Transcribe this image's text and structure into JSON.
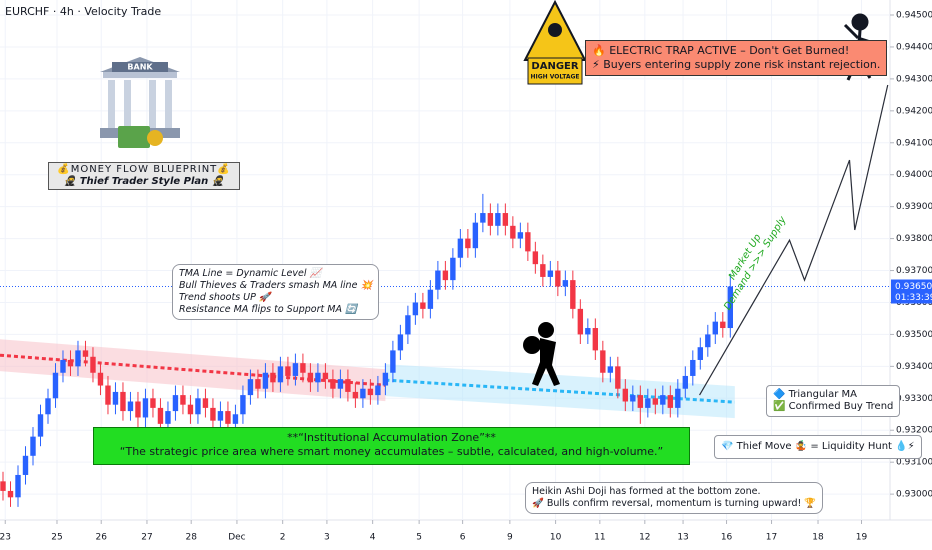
{
  "chart_data": {
    "type": "candlestick",
    "title": "EURCHF · 4h · Velocity Trade",
    "up_color": "#2962ff",
    "down_color": "#f23645",
    "grid": true,
    "xlim": [
      -0.4,
      118.3
    ],
    "ylim": [
      0.92919,
      0.94547
    ],
    "xticks": [
      {
        "value": 0.3,
        "label": "23"
      },
      {
        "value": 7.2,
        "label": "25"
      },
      {
        "value": 13.1,
        "label": "26"
      },
      {
        "value": 19.2,
        "label": "27"
      },
      {
        "value": 25.1,
        "label": "28"
      },
      {
        "value": 31.2,
        "label": "Dec"
      },
      {
        "value": 37.3,
        "label": "2"
      },
      {
        "value": 43.2,
        "label": "3"
      },
      {
        "value": 49.3,
        "label": "4"
      },
      {
        "value": 55.5,
        "label": "5"
      },
      {
        "value": 61.3,
        "label": "6"
      },
      {
        "value": 67.6,
        "label": "9"
      },
      {
        "value": 73.7,
        "label": "10"
      },
      {
        "value": 79.6,
        "label": "11"
      },
      {
        "value": 85.6,
        "label": "12"
      },
      {
        "value": 90.7,
        "label": "13"
      },
      {
        "value": 96.5,
        "label": "16"
      },
      {
        "value": 102.5,
        "label": "17"
      },
      {
        "value": 108.7,
        "label": "18"
      },
      {
        "value": 114.5,
        "label": "19"
      }
    ],
    "yticks": [
      {
        "value": 0.93,
        "label": "0.93000"
      },
      {
        "value": 0.931,
        "label": "0.93100"
      },
      {
        "value": 0.932,
        "label": "0.93200"
      },
      {
        "value": 0.933,
        "label": "0.93300"
      },
      {
        "value": 0.934,
        "label": "0.93400"
      },
      {
        "value": 0.935,
        "label": "0.93500"
      },
      {
        "value": 0.936,
        "label": "0.93600"
      },
      {
        "value": 0.937,
        "label": "0.93700"
      },
      {
        "value": 0.938,
        "label": "0.93800"
      },
      {
        "value": 0.939,
        "label": "0.93900"
      },
      {
        "value": 0.94,
        "label": "0.94000"
      },
      {
        "value": 0.941,
        "label": "0.94100"
      },
      {
        "value": 0.942,
        "label": "0.94200"
      },
      {
        "value": 0.943,
        "label": "0.94300"
      },
      {
        "value": 0.944,
        "label": "0.94400"
      },
      {
        "value": 0.945,
        "label": "0.94500"
      }
    ],
    "x": [
      0,
      1,
      2,
      3,
      4,
      5,
      6,
      7,
      8,
      9,
      10,
      11,
      12,
      13,
      14,
      15,
      16,
      17,
      18,
      19,
      20,
      21,
      22,
      23,
      24,
      25,
      26,
      27,
      28,
      29,
      30,
      31,
      32,
      33,
      34,
      35,
      36,
      37,
      38,
      39,
      40,
      41,
      42,
      43,
      44,
      45,
      46,
      47,
      48,
      49,
      50,
      51,
      52,
      53,
      54,
      55,
      56,
      57,
      58,
      59,
      60,
      61,
      62,
      63,
      64,
      65,
      66,
      67,
      68,
      69,
      70,
      71,
      72,
      73,
      74,
      75,
      76,
      77,
      78,
      79,
      80,
      81,
      82,
      83,
      84,
      85,
      86,
      87,
      88,
      89,
      90,
      91,
      92,
      93,
      94,
      95,
      96,
      97
    ],
    "open": [
      0.9304,
      0.9301,
      0.9299,
      0.9306,
      0.9312,
      0.9318,
      0.9325,
      0.933,
      0.9338,
      0.9342,
      0.934,
      0.9345,
      0.9343,
      0.9338,
      0.9334,
      0.9328,
      0.9332,
      0.9326,
      0.9329,
      0.9324,
      0.933,
      0.9327,
      0.9322,
      0.9326,
      0.9331,
      0.9328,
      0.9325,
      0.933,
      0.9327,
      0.9323,
      0.9326,
      0.9322,
      0.9325,
      0.9331,
      0.9336,
      0.9333,
      0.9338,
      0.9335,
      0.934,
      0.9337,
      0.9341,
      0.9338,
      0.9335,
      0.9338,
      0.9336,
      0.9333,
      0.9336,
      0.9332,
      0.933,
      0.9333,
      0.9331,
      0.9334,
      0.9338,
      0.9345,
      0.935,
      0.9356,
      0.936,
      0.9358,
      0.9364,
      0.937,
      0.9367,
      0.9374,
      0.938,
      0.9377,
      0.9385,
      0.9388,
      0.9384,
      0.9388,
      0.9384,
      0.938,
      0.9382,
      0.9376,
      0.9372,
      0.9368,
      0.937,
      0.9365,
      0.9367,
      0.9358,
      0.935,
      0.9352,
      0.9345,
      0.9338,
      0.934,
      0.9333,
      0.9329,
      0.9331,
      0.9327,
      0.933,
      0.9328,
      0.9331,
      0.9327,
      0.9333,
      0.9337,
      0.9342,
      0.9346,
      0.935,
      0.9354,
      0.9352
    ],
    "high": [
      0.9307,
      0.9304,
      0.9309,
      0.9315,
      0.9321,
      0.9328,
      0.9333,
      0.9341,
      0.9345,
      0.9345,
      0.9348,
      0.9348,
      0.9346,
      0.9341,
      0.9337,
      0.9335,
      0.9335,
      0.9332,
      0.9332,
      0.9333,
      0.9333,
      0.933,
      0.9329,
      0.9334,
      0.9334,
      0.9331,
      0.9333,
      0.9333,
      0.933,
      0.9329,
      0.9329,
      0.9328,
      0.9334,
      0.9339,
      0.9339,
      0.9341,
      0.9341,
      0.9343,
      0.9343,
      0.9344,
      0.9344,
      0.9341,
      0.9341,
      0.9341,
      0.9339,
      0.9339,
      0.9339,
      0.9335,
      0.9336,
      0.9336,
      0.9337,
      0.9341,
      0.9348,
      0.9353,
      0.9359,
      0.9363,
      0.9363,
      0.9367,
      0.9373,
      0.9373,
      0.9377,
      0.9383,
      0.9383,
      0.9388,
      0.9394,
      0.9391,
      0.9391,
      0.9391,
      0.9387,
      0.9385,
      0.9385,
      0.9379,
      0.9375,
      0.9373,
      0.9373,
      0.937,
      0.937,
      0.9361,
      0.9355,
      0.9355,
      0.9348,
      0.9343,
      0.9343,
      0.9336,
      0.9334,
      0.9334,
      0.9333,
      0.9333,
      0.9334,
      0.9334,
      0.9336,
      0.934,
      0.9345,
      0.9349,
      0.9353,
      0.9357,
      0.9357,
      0.9369
    ],
    "low": [
      0.9298,
      0.9296,
      0.9296,
      0.9303,
      0.9309,
      0.9315,
      0.9322,
      0.9327,
      0.9335,
      0.9337,
      0.9337,
      0.934,
      0.9335,
      0.9331,
      0.9325,
      0.9325,
      0.9323,
      0.9323,
      0.9321,
      0.9321,
      0.9324,
      0.9319,
      0.9319,
      0.9323,
      0.9325,
      0.9322,
      0.9322,
      0.9324,
      0.932,
      0.932,
      0.9319,
      0.9319,
      0.9322,
      0.9328,
      0.933,
      0.933,
      0.9332,
      0.9332,
      0.9334,
      0.9334,
      0.9335,
      0.9332,
      0.9332,
      0.9333,
      0.933,
      0.933,
      0.9329,
      0.9327,
      0.9327,
      0.9328,
      0.9328,
      0.9331,
      0.9335,
      0.9342,
      0.9347,
      0.9353,
      0.9355,
      0.9355,
      0.9361,
      0.9364,
      0.9364,
      0.9371,
      0.9374,
      0.9374,
      0.9382,
      0.9381,
      0.9381,
      0.9381,
      0.9377,
      0.9377,
      0.9373,
      0.9369,
      0.9365,
      0.9365,
      0.9362,
      0.9362,
      0.9355,
      0.9347,
      0.9347,
      0.9342,
      0.9335,
      0.9335,
      0.933,
      0.9326,
      0.9326,
      0.9322,
      0.9324,
      0.9325,
      0.9325,
      0.9324,
      0.9324,
      0.933,
      0.9334,
      0.9339,
      0.9343,
      0.9347,
      0.9349,
      0.9349
    ],
    "close": [
      0.9301,
      0.9299,
      0.9306,
      0.9312,
      0.9318,
      0.9325,
      0.933,
      0.9338,
      0.9342,
      0.934,
      0.9345,
      0.9343,
      0.9338,
      0.9334,
      0.9328,
      0.9332,
      0.9326,
      0.9329,
      0.9324,
      0.933,
      0.9327,
      0.9322,
      0.9326,
      0.9331,
      0.9328,
      0.9325,
      0.933,
      0.9327,
      0.9323,
      0.9326,
      0.9322,
      0.9325,
      0.9331,
      0.9336,
      0.9333,
      0.9338,
      0.9335,
      0.934,
      0.9337,
      0.9341,
      0.9338,
      0.9335,
      0.9338,
      0.9336,
      0.9333,
      0.9336,
      0.9332,
      0.933,
      0.9333,
      0.9331,
      0.9334,
      0.9338,
      0.9345,
      0.935,
      0.9356,
      0.936,
      0.9358,
      0.9364,
      0.937,
      0.9367,
      0.9374,
      0.938,
      0.9377,
      0.9385,
      0.9388,
      0.9384,
      0.9388,
      0.9384,
      0.938,
      0.9382,
      0.9376,
      0.9372,
      0.9368,
      0.937,
      0.9365,
      0.9367,
      0.9358,
      0.935,
      0.9352,
      0.9345,
      0.9338,
      0.934,
      0.9333,
      0.9329,
      0.9331,
      0.9327,
      0.933,
      0.9328,
      0.9331,
      0.9327,
      0.9333,
      0.9337,
      0.9342,
      0.9346,
      0.935,
      0.9354,
      0.9352,
      0.9365
    ],
    "band_width": 0.0005,
    "ma_lines": [
      {
        "color": "#f23645",
        "band_color": "#f8bbc4",
        "x": [
          -0.4,
          51
        ],
        "y": [
          0.93435,
          0.93341
        ]
      },
      {
        "color": "#29b6f6",
        "band_color": "#b3e5fc",
        "x": [
          51,
          97.6
        ],
        "y": [
          0.93357,
          0.93288
        ]
      }
    ],
    "projection": {
      "color": "#2a2e39",
      "x": [
        92.9,
        104.9,
        106.9,
        112.9,
        113.6,
        118
      ],
      "y": [
        0.9331,
        0.93795,
        0.9367,
        0.94046,
        0.93827,
        0.94281
      ]
    },
    "last_price": {
      "value": 0.9365,
      "label": "0.93650"
    },
    "countdown": "01:33:39",
    "annotations": {
      "blueprint": [
        "💰MONEY FLOW BLUEPRINT💰",
        "🥷 Thief Trader Style Plan 🥷"
      ],
      "bank": "BANK",
      "danger": [
        "DANGER",
        "HIGH VOLTAGE"
      ],
      "trap": [
        "🔥 ELECTRIC TRAP ACTIVE – Don't Get Burned!",
        "⚡ Buyers entering supply zone risk instant rejection."
      ],
      "tma": [
        "TMA Line = Dynamic Level 📈",
        "Bull Thieves & Traders smash MA line 💥",
        "Trend shoots UP 🚀",
        "Resistance MA flips to Support MA 🔄"
      ],
      "zone": [
        "**“Institutional Accumulation Zone”**",
        "“The strategic price area where smart money accumulates – subtle, calculated, and high-volume.”"
      ],
      "market": [
        "Market Up",
        "Demand >>> Supply"
      ],
      "trend": [
        "🔷 Triangular MA",
        "✅ Confirmed Buy Trend"
      ],
      "thief": "💎 Thief Move 🤹 = Liquidity Hunt 💧⚡",
      "heikin": [
        "Heikin Ashi Doji has formed at the bottom zone.",
        "🚀 Bulls confirm reversal, momentum is turning upward! 🏆"
      ]
    }
  }
}
